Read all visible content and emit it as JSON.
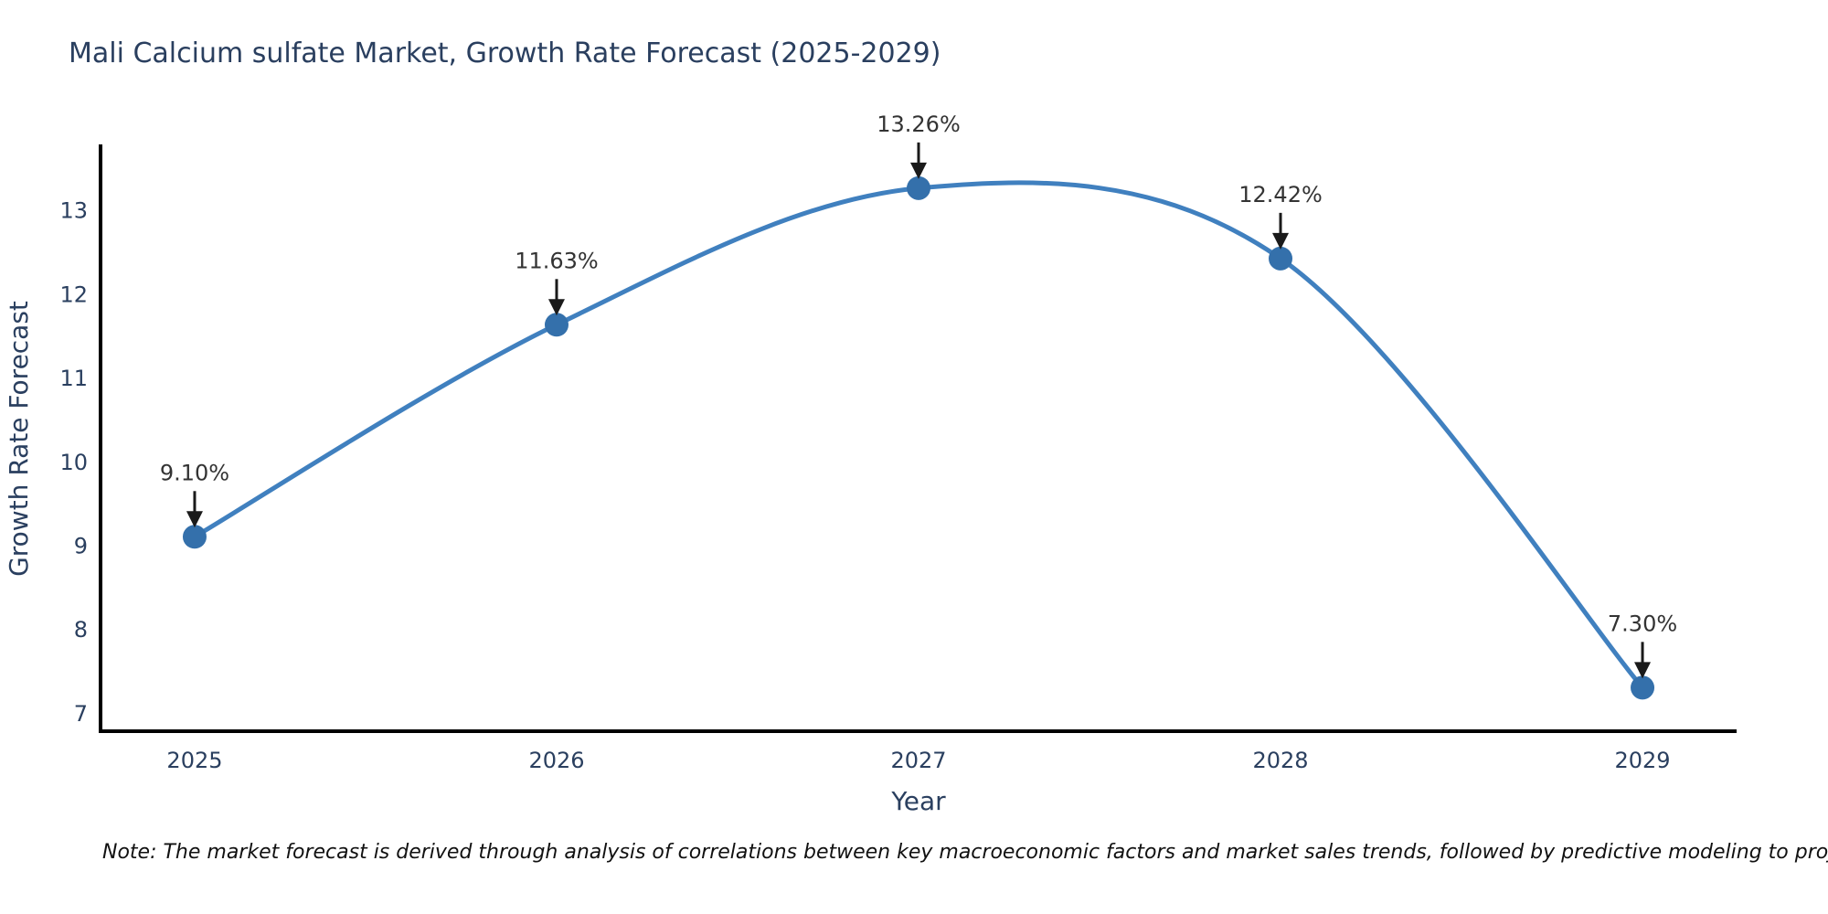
{
  "note": "Note: The market forecast is derived through analysis of correlations between key macroeconomic factors and market sales trends, followed by predictive modeling to project future sales",
  "chart_data": {
    "type": "line",
    "title": "Mali Calcium sulfate Market, Growth Rate Forecast (2025-2029)",
    "xlabel": "Year",
    "ylabel": "Growth Rate Forecast",
    "x": [
      2025,
      2026,
      2027,
      2028,
      2029
    ],
    "y": [
      9.1,
      11.63,
      13.26,
      12.42,
      7.3
    ],
    "point_labels": [
      "9.10%",
      "11.63%",
      "13.26%",
      "12.42%",
      "7.30%"
    ],
    "yticks": [
      7,
      8,
      9,
      10,
      11,
      12,
      13
    ],
    "xlim": [
      2024.74,
      2029.26
    ],
    "ylim": [
      6.78,
      13.76
    ],
    "line_shape": "spline",
    "grid": false,
    "legend": "none",
    "colors": {
      "line": "#4080bf",
      "marker": "#3470ab",
      "axis_line": "#000000",
      "arrow": "#1a1a1a",
      "title_text": "#2a3f5f",
      "annotation_text": "#333333"
    }
  }
}
